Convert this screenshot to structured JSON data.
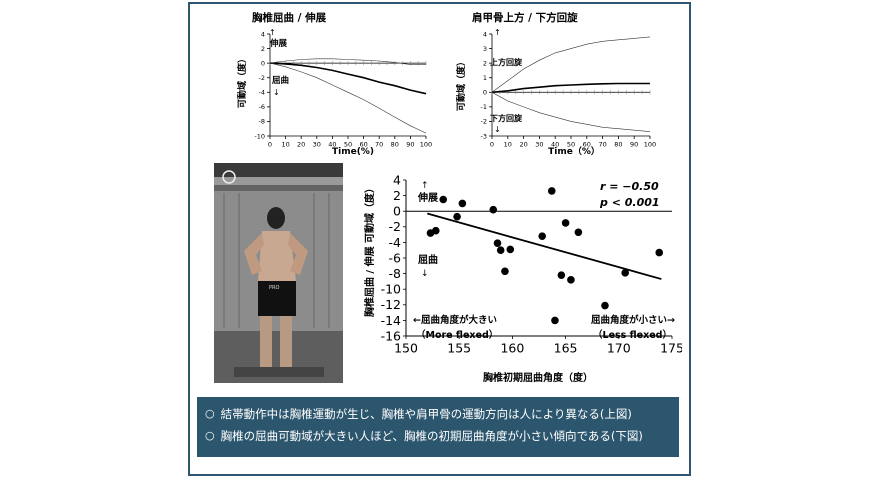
{
  "chart_data": [
    {
      "type": "line",
      "title": "胸椎屈曲 / 伸展",
      "xlabel": "Time(%)",
      "ylabel": "可動域（度）",
      "xlim": [
        0,
        100
      ],
      "ylim": [
        -10,
        4
      ],
      "x_ticks": [
        "0",
        "10",
        "20",
        "30",
        "40",
        "50",
        "60",
        "70",
        "80",
        "90",
        "100"
      ],
      "y_ticks": [
        "4",
        "2",
        "0",
        "-2",
        "-4",
        "-6",
        "-8",
        "-10"
      ],
      "annotations": {
        "up": "↑",
        "up_label": "伸展",
        "down_label": "屈曲",
        "down": "↓"
      },
      "series": [
        {
          "x": [
            0,
            10,
            20,
            30,
            40,
            50,
            60,
            70,
            80,
            90,
            100
          ],
          "values": [
            0,
            -0.1,
            -0.3,
            -0.6,
            -1.0,
            -1.5,
            -2.0,
            -2.6,
            -3.1,
            -3.7,
            -4.2
          ]
        },
        {
          "x": [
            0,
            10,
            20,
            30,
            40,
            50,
            60,
            70,
            80,
            90,
            100
          ],
          "values": [
            0,
            -0.5,
            -1.2,
            -2.0,
            -3.0,
            -4.0,
            -5.0,
            -6.2,
            -7.4,
            -8.6,
            -9.6
          ]
        },
        {
          "x": [
            0,
            10,
            20,
            30,
            40,
            50,
            60,
            70,
            80,
            90,
            100
          ],
          "values": [
            0,
            0.3,
            0.5,
            0.6,
            0.6,
            0.5,
            0.4,
            0.3,
            0.1,
            -0.2,
            -0.2
          ]
        }
      ]
    },
    {
      "type": "line",
      "title": "肩甲骨上方 / 下方回旋",
      "xlabel": "Time（%）",
      "ylabel": "可動域（度）",
      "xlim": [
        0,
        100
      ],
      "ylim": [
        -3,
        4
      ],
      "x_ticks": [
        "0",
        "10",
        "20",
        "30",
        "40",
        "50",
        "60",
        "70",
        "80",
        "90",
        "100"
      ],
      "y_ticks": [
        "4",
        "3",
        "2",
        "1",
        "0",
        "-1",
        "-2",
        "-3"
      ],
      "annotations": {
        "up": "↑",
        "up_label": "上方回旋",
        "down_label": "下方回旋",
        "down": "↓"
      },
      "series": [
        {
          "x": [
            0,
            10,
            20,
            30,
            40,
            50,
            60,
            70,
            80,
            90,
            100
          ],
          "values": [
            0,
            0.8,
            1.6,
            2.2,
            2.7,
            3.0,
            3.3,
            3.5,
            3.6,
            3.7,
            3.8
          ]
        },
        {
          "x": [
            0,
            10,
            20,
            30,
            40,
            50,
            60,
            70,
            80,
            90,
            100
          ],
          "values": [
            0,
            0.1,
            0.25,
            0.35,
            0.45,
            0.5,
            0.55,
            0.58,
            0.6,
            0.6,
            0.6
          ]
        },
        {
          "x": [
            0,
            10,
            20,
            30,
            40,
            50,
            60,
            70,
            80,
            90,
            100
          ],
          "values": [
            0,
            -0.6,
            -1.0,
            -1.4,
            -1.7,
            -2.0,
            -2.2,
            -2.4,
            -2.5,
            -2.6,
            -2.7
          ]
        }
      ]
    },
    {
      "type": "scatter",
      "xlabel": "胸椎初期屈曲角度（度）",
      "ylabel": "胸椎屈曲 / 伸展 可動域（度）",
      "xlim": [
        150,
        175
      ],
      "ylim": [
        -16,
        4
      ],
      "x_ticks": [
        "150",
        "155",
        "160",
        "165",
        "170",
        "175"
      ],
      "y_ticks": [
        "4",
        "2",
        "0",
        "-2",
        "-4",
        "-6",
        "-8",
        "-10",
        "-12",
        "-14",
        "-16"
      ],
      "stats": {
        "r": "r = −0.50",
        "p": "p < 0.001"
      },
      "annotations": {
        "up": "↑",
        "up_label": "伸展",
        "down_label": "屈曲",
        "down": "↓",
        "left_label": "←屈曲角度が大きい",
        "left_sub": "（More flexed）",
        "right_label": "屈曲角度が小さい→",
        "right_sub": "（Less flexed）"
      },
      "x": [
        153.5,
        155.3,
        152.3,
        152.8,
        154.8,
        158.2,
        158.6,
        158.9,
        159.3,
        159.8,
        162.8,
        163.7,
        164.0,
        164.6,
        165.0,
        166.2,
        168.7,
        170.6,
        173.8,
        165.5
      ],
      "values": [
        1.5,
        1.0,
        -2.8,
        -2.5,
        -0.7,
        0.2,
        -4.1,
        -5.0,
        -7.7,
        -4.9,
        -3.2,
        2.6,
        -14.0,
        -8.2,
        -1.5,
        -2.7,
        -12.1,
        -7.9,
        -5.3,
        -8.8
      ],
      "trend": {
        "x": [
          152,
          174
        ],
        "values": [
          -0.3,
          -8.7
        ]
      }
    }
  ],
  "summary": {
    "bullet": "○",
    "line1": "結帯動作中は胸椎運動が生じ、胸椎や肩甲骨の運動方向は人により異なる(上図)",
    "line2": "胸椎の屈曲可動域が大きい人ほど、胸椎の初期屈曲角度が小さい傾向である(下図)"
  },
  "photo": {
    "marker_text": "PRO"
  }
}
